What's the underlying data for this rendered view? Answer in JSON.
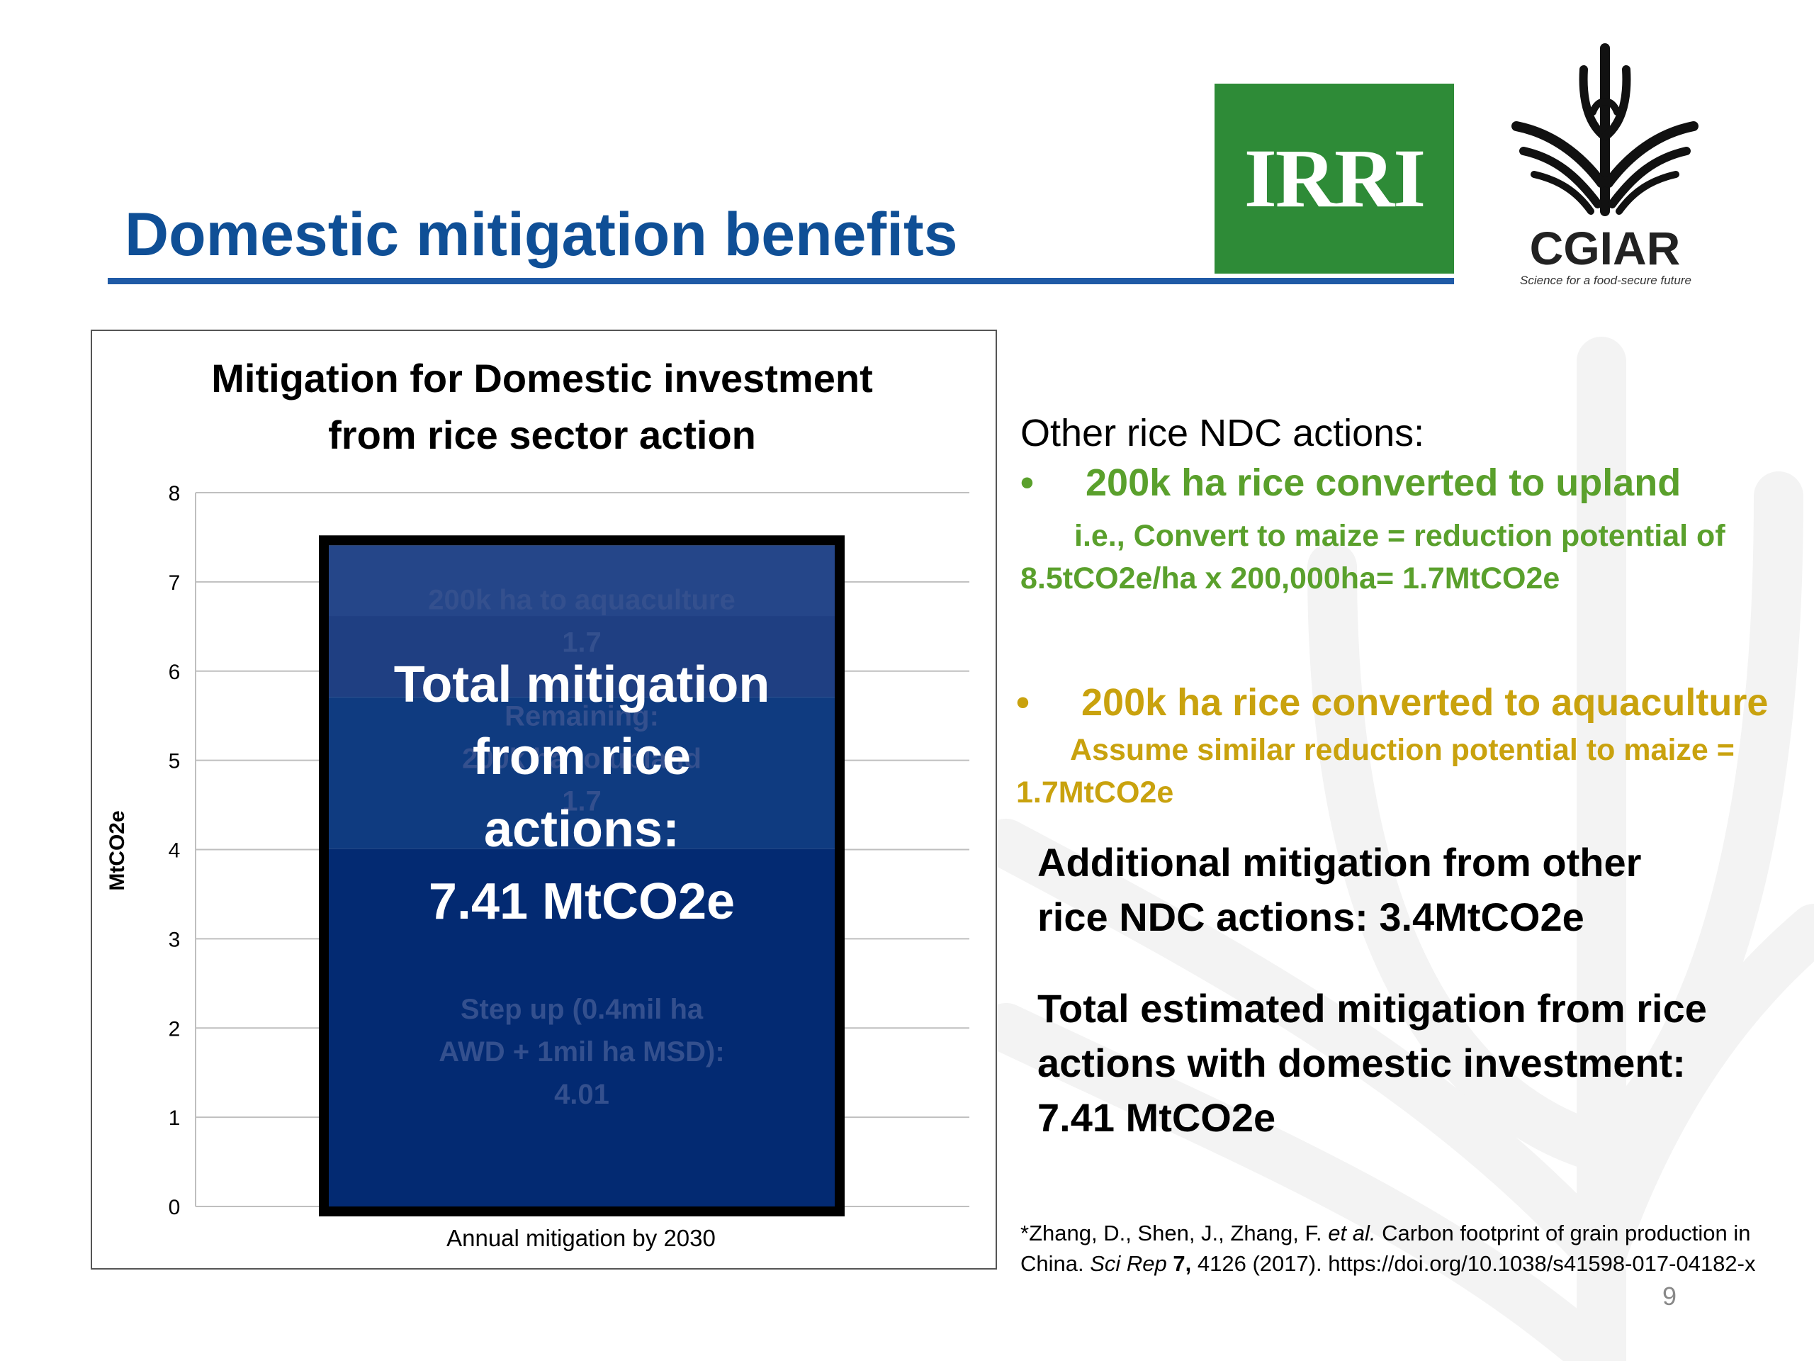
{
  "slide": {
    "title": "Domestic mitigation benefits",
    "page_number": "9"
  },
  "logos": {
    "irri": "IRRI",
    "cgiar": "CGIAR",
    "cgiar_tagline": "Science for a food-secure future"
  },
  "colors": {
    "title_blue": "#0f4f96",
    "irri_green": "#2e8b37",
    "bar_navy": "#032a72",
    "green_text": "#5aa02c",
    "gold_text": "#c9a20e"
  },
  "chart_data": {
    "type": "bar",
    "title_line1": "Mitigation for Domestic investment",
    "title_line2": "from rice sector action",
    "xlabel": "Annual mitigation by 2030",
    "ylabel": "MtCO2e",
    "ylim": [
      0,
      8
    ],
    "yticks": [
      "0",
      "1",
      "2",
      "3",
      "4",
      "5",
      "6",
      "7",
      "8"
    ],
    "grid": true,
    "stack_total": 7.41,
    "series": [
      {
        "name": "Step up (0.4mil ha AWD + 1mil ha MSD)",
        "value": 4.01
      },
      {
        "name": "200k ha to upland",
        "value": 1.7
      },
      {
        "name": "200k ha to aquaculture",
        "value": 1.7
      }
    ],
    "overlay": {
      "line1": "Total mitigation",
      "line2": "from rice",
      "line3": "actions:",
      "line4": "7.41 MtCO2e"
    },
    "hidden_labels": {
      "aquaculture_1": "200k ha to aquaculture",
      "aquaculture_2": "1.7",
      "upland_0": "Remaining:",
      "upland_1": "200k ha to upland",
      "upland_2": "1.7",
      "base_1": "Step up (0.4mil ha",
      "base_2": "AWD + 1mil ha MSD):",
      "base_3": "4.01"
    }
  },
  "right_panel": {
    "heading": "Other rice NDC actions:",
    "bullet_symbol": "•",
    "upland": {
      "title": "200k ha rice converted to upland",
      "detail_line1": "i.e., Convert to maize = reduction potential of",
      "detail_line2": "8.5tCO2e/ha x 200,000ha= 1.7MtCO2e"
    },
    "aquaculture": {
      "title": "200k ha rice converted to aquaculture",
      "detail_line1": "Assume similar reduction potential to maize =",
      "detail_line2": "1.7MtCO2e"
    },
    "additional_line1": "Additional mitigation from other",
    "additional_line2": "rice NDC actions: 3.4MtCO2e",
    "total_line1": "Total estimated mitigation from rice",
    "total_line2": "actions with domestic investment:",
    "total_line3": "7.41 MtCO2e"
  },
  "citation": {
    "part1": "*Zhang, D., Shen, J., Zhang, F. ",
    "etal": "et al.",
    "part2": " Carbon footprint of grain production in China. ",
    "journal": "Sci Rep",
    "volume": " 7,",
    "part3": " 4126 (2017). https://doi.org/10.1038/s41598-017-04182-x"
  }
}
